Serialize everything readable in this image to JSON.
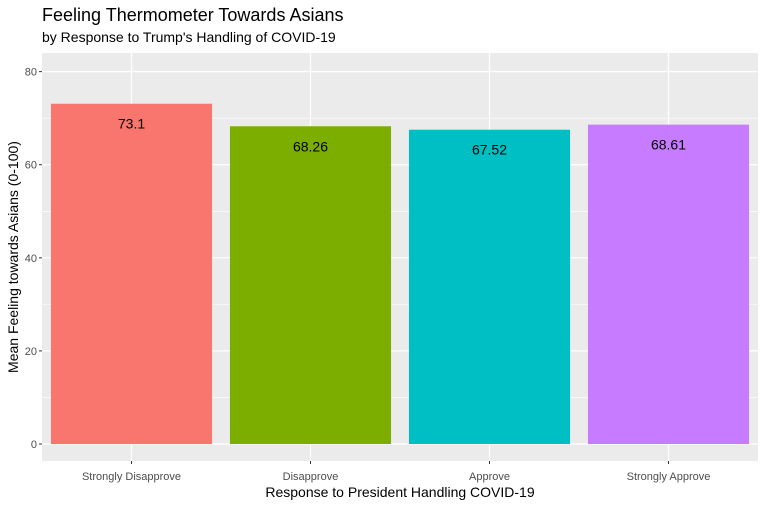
{
  "chart_data": {
    "type": "bar",
    "title": "Feeling Thermometer Towards Asians",
    "subtitle": "by Response to Trump's Handling of COVID-19",
    "xlabel": "Response to President Handling COVID-19",
    "ylabel": "Mean Feeling towards Asians (0-100)",
    "categories": [
      "Strongly Disapprove",
      "Disapprove",
      "Approve",
      "Strongly Approve"
    ],
    "values": [
      73.1,
      68.26,
      67.52,
      68.61
    ],
    "value_labels": [
      "73.1",
      "68.26",
      "67.52",
      "68.61"
    ],
    "colors": [
      "#F8766D",
      "#7CAE00",
      "#00BFC4",
      "#C77CFF"
    ],
    "ylim": [
      -3.65,
      84.0
    ],
    "yticks": [
      0,
      20,
      40,
      60,
      80
    ],
    "ytick_labels": [
      "0",
      "20",
      "40",
      "60",
      "80"
    ],
    "grid": true,
    "legend": "none",
    "panel_background": "#EBEBEB",
    "grid_color": "#FFFFFF"
  }
}
